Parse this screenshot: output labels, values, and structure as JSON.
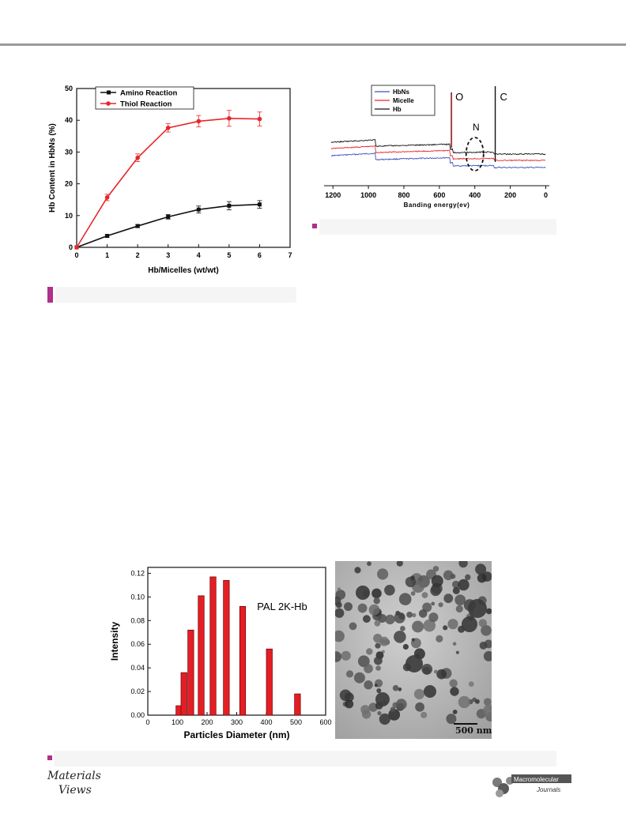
{
  "colors": {
    "accent_magenta": "#b0308a",
    "amino": "#111111",
    "thiol": "#e8252b",
    "hbns": "#3a4fc0",
    "micelle": "#e8252b",
    "hb": "#111111",
    "bar": "#e41e25"
  },
  "chart_data": [
    {
      "type": "line",
      "xlabel": "Hb/Micelles (wt/wt)",
      "ylabel": "Hb Content in HbNs (%)",
      "xlim": [
        0,
        7
      ],
      "ylim": [
        0,
        50
      ],
      "xticks": [
        "0",
        "1",
        "2",
        "3",
        "4",
        "5",
        "6",
        "7"
      ],
      "yticks": [
        "0",
        "10",
        "20",
        "30",
        "40",
        "50"
      ],
      "legend_position": "top-left",
      "x": [
        0,
        1,
        2,
        3,
        4,
        5,
        6
      ],
      "series": [
        {
          "name": "Amino Reaction",
          "values": [
            0,
            3.6,
            6.7,
            9.6,
            11.9,
            13.1,
            13.5
          ],
          "errors": [
            0,
            0.4,
            0.5,
            0.7,
            1.1,
            1.3,
            1.2
          ]
        },
        {
          "name": "Thiol Reaction",
          "values": [
            0,
            15.7,
            28.2,
            37.6,
            39.7,
            40.6,
            40.4
          ],
          "errors": [
            0,
            1.0,
            1.2,
            1.3,
            1.8,
            2.5,
            2.2
          ]
        }
      ]
    },
    {
      "type": "line",
      "xlabel": "Banding energy(ev)",
      "xlim": [
        1250,
        -20
      ],
      "xticks": [
        "1200",
        "1000",
        "800",
        "600",
        "400",
        "200",
        "0"
      ],
      "legend_position": "top-left",
      "annotations": [
        "O",
        "C",
        "N"
      ],
      "series": [
        {
          "name": "HbNs"
        },
        {
          "name": "Micelle"
        },
        {
          "name": "Hb"
        }
      ]
    },
    {
      "type": "bar",
      "xlabel": "Particles Diameter (nm)",
      "ylabel": "Intensity",
      "annotation": "PAL 2K-Hb",
      "xlim": [
        0,
        600
      ],
      "ylim": [
        0,
        0.125
      ],
      "xticks": [
        "0",
        "100",
        "200",
        "300",
        "400",
        "500",
        "600"
      ],
      "yticks": [
        "0.00",
        "0.02",
        "0.04",
        "0.06",
        "0.08",
        "0.10",
        "0.12"
      ],
      "x": [
        105,
        122,
        145,
        180,
        220,
        265,
        320,
        410,
        505
      ],
      "values": [
        0.008,
        0.036,
        0.072,
        0.101,
        0.117,
        0.114,
        0.092,
        0.056,
        0.018
      ]
    }
  ],
  "tem": {
    "scale_label": "500 nm"
  },
  "footer": {
    "left_logo": "Materials Views",
    "right_logo_top": "Macromolecular",
    "right_logo_bottom": "Journals"
  }
}
